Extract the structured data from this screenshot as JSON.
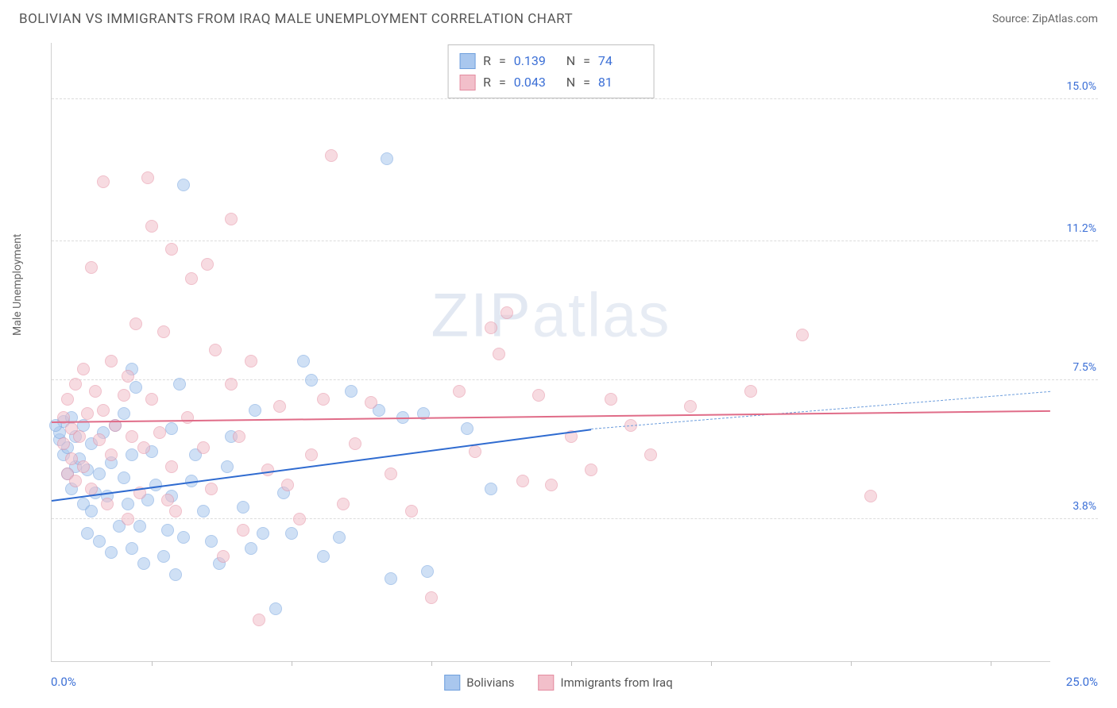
{
  "title": "BOLIVIAN VS IMMIGRANTS FROM IRAQ MALE UNEMPLOYMENT CORRELATION CHART",
  "source_label": "Source:",
  "source_name": "ZipAtlas.com",
  "ylabel": "Male Unemployment",
  "watermark_a": "ZIP",
  "watermark_b": "atlas",
  "chart": {
    "type": "scatter",
    "xlim": [
      0.0,
      25.0
    ],
    "ylim": [
      0.0,
      16.5
    ],
    "x_ticks_display": [
      "0.0%",
      "25.0%"
    ],
    "x_minor_tick_positions": [
      2.5,
      6.0,
      9.5,
      13.0,
      16.5,
      20.0,
      23.5
    ],
    "y_gridlines": [
      {
        "value": 3.8,
        "label": "3.8%"
      },
      {
        "value": 7.5,
        "label": "7.5%"
      },
      {
        "value": 11.2,
        "label": "11.2%"
      },
      {
        "value": 15.0,
        "label": "15.0%"
      }
    ],
    "grid_color": "#dcdcdc",
    "axis_color": "#d0d0d0",
    "tick_label_color": "#3b6fd6",
    "background_color": "#ffffff",
    "point_radius": 8,
    "point_opacity": 0.55,
    "series": [
      {
        "key": "bolivians",
        "label": "Bolivians",
        "fill": "#a9c7ee",
        "stroke": "#6f9fdd",
        "stroke_strong": "#2f6bd0",
        "R": "0.139",
        "N": "74",
        "trend": {
          "x0": 0.0,
          "y0": 4.3,
          "x1_solid": 13.5,
          "y1_solid": 6.2,
          "x1_dash": 25.0,
          "y1_dash": 7.2
        },
        "points": [
          [
            0.2,
            5.9
          ],
          [
            0.2,
            6.1
          ],
          [
            0.3,
            5.5
          ],
          [
            0.3,
            6.4
          ],
          [
            0.1,
            6.3
          ],
          [
            0.4,
            5.0
          ],
          [
            0.4,
            5.7
          ],
          [
            0.5,
            6.5
          ],
          [
            0.5,
            4.6
          ],
          [
            0.6,
            5.2
          ],
          [
            0.6,
            6.0
          ],
          [
            0.7,
            5.4
          ],
          [
            0.8,
            4.2
          ],
          [
            0.8,
            6.3
          ],
          [
            0.9,
            3.4
          ],
          [
            0.9,
            5.1
          ],
          [
            1.0,
            4.0
          ],
          [
            1.0,
            5.8
          ],
          [
            1.1,
            4.5
          ],
          [
            1.2,
            3.2
          ],
          [
            1.2,
            5.0
          ],
          [
            1.3,
            6.1
          ],
          [
            1.4,
            4.4
          ],
          [
            1.5,
            2.9
          ],
          [
            1.5,
            5.3
          ],
          [
            1.6,
            6.3
          ],
          [
            1.7,
            3.6
          ],
          [
            1.8,
            4.9
          ],
          [
            1.8,
            6.6
          ],
          [
            1.9,
            4.2
          ],
          [
            2.0,
            3.0
          ],
          [
            2.0,
            5.5
          ],
          [
            2.1,
            7.3
          ],
          [
            2.2,
            3.6
          ],
          [
            2.3,
            2.6
          ],
          [
            2.4,
            4.3
          ],
          [
            2.5,
            5.6
          ],
          [
            2.6,
            4.7
          ],
          [
            2.8,
            2.8
          ],
          [
            2.9,
            3.5
          ],
          [
            3.0,
            6.2
          ],
          [
            3.0,
            4.4
          ],
          [
            3.1,
            2.3
          ],
          [
            3.2,
            7.4
          ],
          [
            3.3,
            3.3
          ],
          [
            3.5,
            4.8
          ],
          [
            3.6,
            5.5
          ],
          [
            3.8,
            4.0
          ],
          [
            4.0,
            3.2
          ],
          [
            4.2,
            2.6
          ],
          [
            4.4,
            5.2
          ],
          [
            4.5,
            6.0
          ],
          [
            4.8,
            4.1
          ],
          [
            5.0,
            3.0
          ],
          [
            5.1,
            6.7
          ],
          [
            5.3,
            3.4
          ],
          [
            5.6,
            1.4
          ],
          [
            5.8,
            4.5
          ],
          [
            6.0,
            3.4
          ],
          [
            6.3,
            8.0
          ],
          [
            6.5,
            7.5
          ],
          [
            6.8,
            2.8
          ],
          [
            7.2,
            3.3
          ],
          [
            7.5,
            7.2
          ],
          [
            8.2,
            6.7
          ],
          [
            8.4,
            13.4
          ],
          [
            8.5,
            2.2
          ],
          [
            8.8,
            6.5
          ],
          [
            9.3,
            6.6
          ],
          [
            9.4,
            2.4
          ],
          [
            10.4,
            6.2
          ],
          [
            11.0,
            4.6
          ],
          [
            3.3,
            12.7
          ],
          [
            2.0,
            7.8
          ]
        ]
      },
      {
        "key": "iraq",
        "label": "Immigrants from Iraq",
        "fill": "#f2bfca",
        "stroke": "#e48ca0",
        "stroke_strong": "#e06c88",
        "R": "0.043",
        "N": "81",
        "trend": {
          "x0": 0.0,
          "y0": 6.4,
          "x1_solid": 25.0,
          "y1_solid": 6.7,
          "x1_dash": 25.0,
          "y1_dash": 6.7
        },
        "points": [
          [
            0.3,
            5.8
          ],
          [
            0.3,
            6.5
          ],
          [
            0.4,
            5.0
          ],
          [
            0.4,
            7.0
          ],
          [
            0.5,
            6.2
          ],
          [
            0.5,
            5.4
          ],
          [
            0.6,
            7.4
          ],
          [
            0.6,
            4.8
          ],
          [
            0.7,
            6.0
          ],
          [
            0.8,
            7.8
          ],
          [
            0.8,
            5.2
          ],
          [
            0.9,
            6.6
          ],
          [
            1.0,
            10.5
          ],
          [
            1.0,
            4.6
          ],
          [
            1.1,
            7.2
          ],
          [
            1.2,
            5.9
          ],
          [
            1.3,
            12.8
          ],
          [
            1.3,
            6.7
          ],
          [
            1.4,
            4.2
          ],
          [
            1.5,
            8.0
          ],
          [
            1.5,
            5.5
          ],
          [
            1.6,
            6.3
          ],
          [
            1.8,
            7.1
          ],
          [
            1.9,
            3.8
          ],
          [
            2.0,
            6.0
          ],
          [
            2.1,
            9.0
          ],
          [
            2.2,
            4.5
          ],
          [
            2.3,
            5.7
          ],
          [
            2.4,
            12.9
          ],
          [
            2.5,
            7.0
          ],
          [
            2.5,
            11.6
          ],
          [
            2.7,
            6.1
          ],
          [
            2.8,
            8.8
          ],
          [
            3.0,
            11.0
          ],
          [
            3.0,
            5.2
          ],
          [
            3.1,
            4.0
          ],
          [
            3.4,
            6.5
          ],
          [
            3.5,
            10.2
          ],
          [
            3.8,
            5.7
          ],
          [
            3.9,
            10.6
          ],
          [
            4.0,
            4.6
          ],
          [
            4.1,
            8.3
          ],
          [
            4.3,
            2.8
          ],
          [
            4.5,
            7.4
          ],
          [
            4.7,
            6.0
          ],
          [
            4.8,
            3.5
          ],
          [
            5.0,
            8.0
          ],
          [
            5.2,
            1.1
          ],
          [
            5.4,
            5.1
          ],
          [
            5.7,
            6.8
          ],
          [
            5.9,
            4.7
          ],
          [
            6.2,
            3.8
          ],
          [
            6.5,
            5.5
          ],
          [
            6.8,
            7.0
          ],
          [
            7.0,
            13.5
          ],
          [
            7.3,
            4.2
          ],
          [
            7.6,
            5.8
          ],
          [
            8.0,
            6.9
          ],
          [
            8.5,
            5.0
          ],
          [
            9.0,
            4.0
          ],
          [
            9.5,
            1.7
          ],
          [
            10.2,
            7.2
          ],
          [
            10.6,
            5.6
          ],
          [
            11.0,
            8.9
          ],
          [
            11.2,
            8.2
          ],
          [
            11.4,
            9.3
          ],
          [
            11.8,
            4.8
          ],
          [
            12.2,
            7.1
          ],
          [
            12.5,
            4.7
          ],
          [
            13.0,
            6.0
          ],
          [
            13.5,
            5.1
          ],
          [
            14.0,
            7.0
          ],
          [
            14.5,
            6.3
          ],
          [
            15.0,
            5.5
          ],
          [
            16.0,
            6.8
          ],
          [
            17.5,
            7.2
          ],
          [
            18.8,
            8.7
          ],
          [
            20.5,
            4.4
          ],
          [
            1.9,
            7.6
          ],
          [
            4.5,
            11.8
          ],
          [
            2.9,
            4.3
          ]
        ]
      }
    ]
  },
  "stats_box": {
    "R_label": "R",
    "N_label": "N",
    "eq": "="
  },
  "legend": {
    "items_ref": [
      "bolivians",
      "iraq"
    ]
  }
}
